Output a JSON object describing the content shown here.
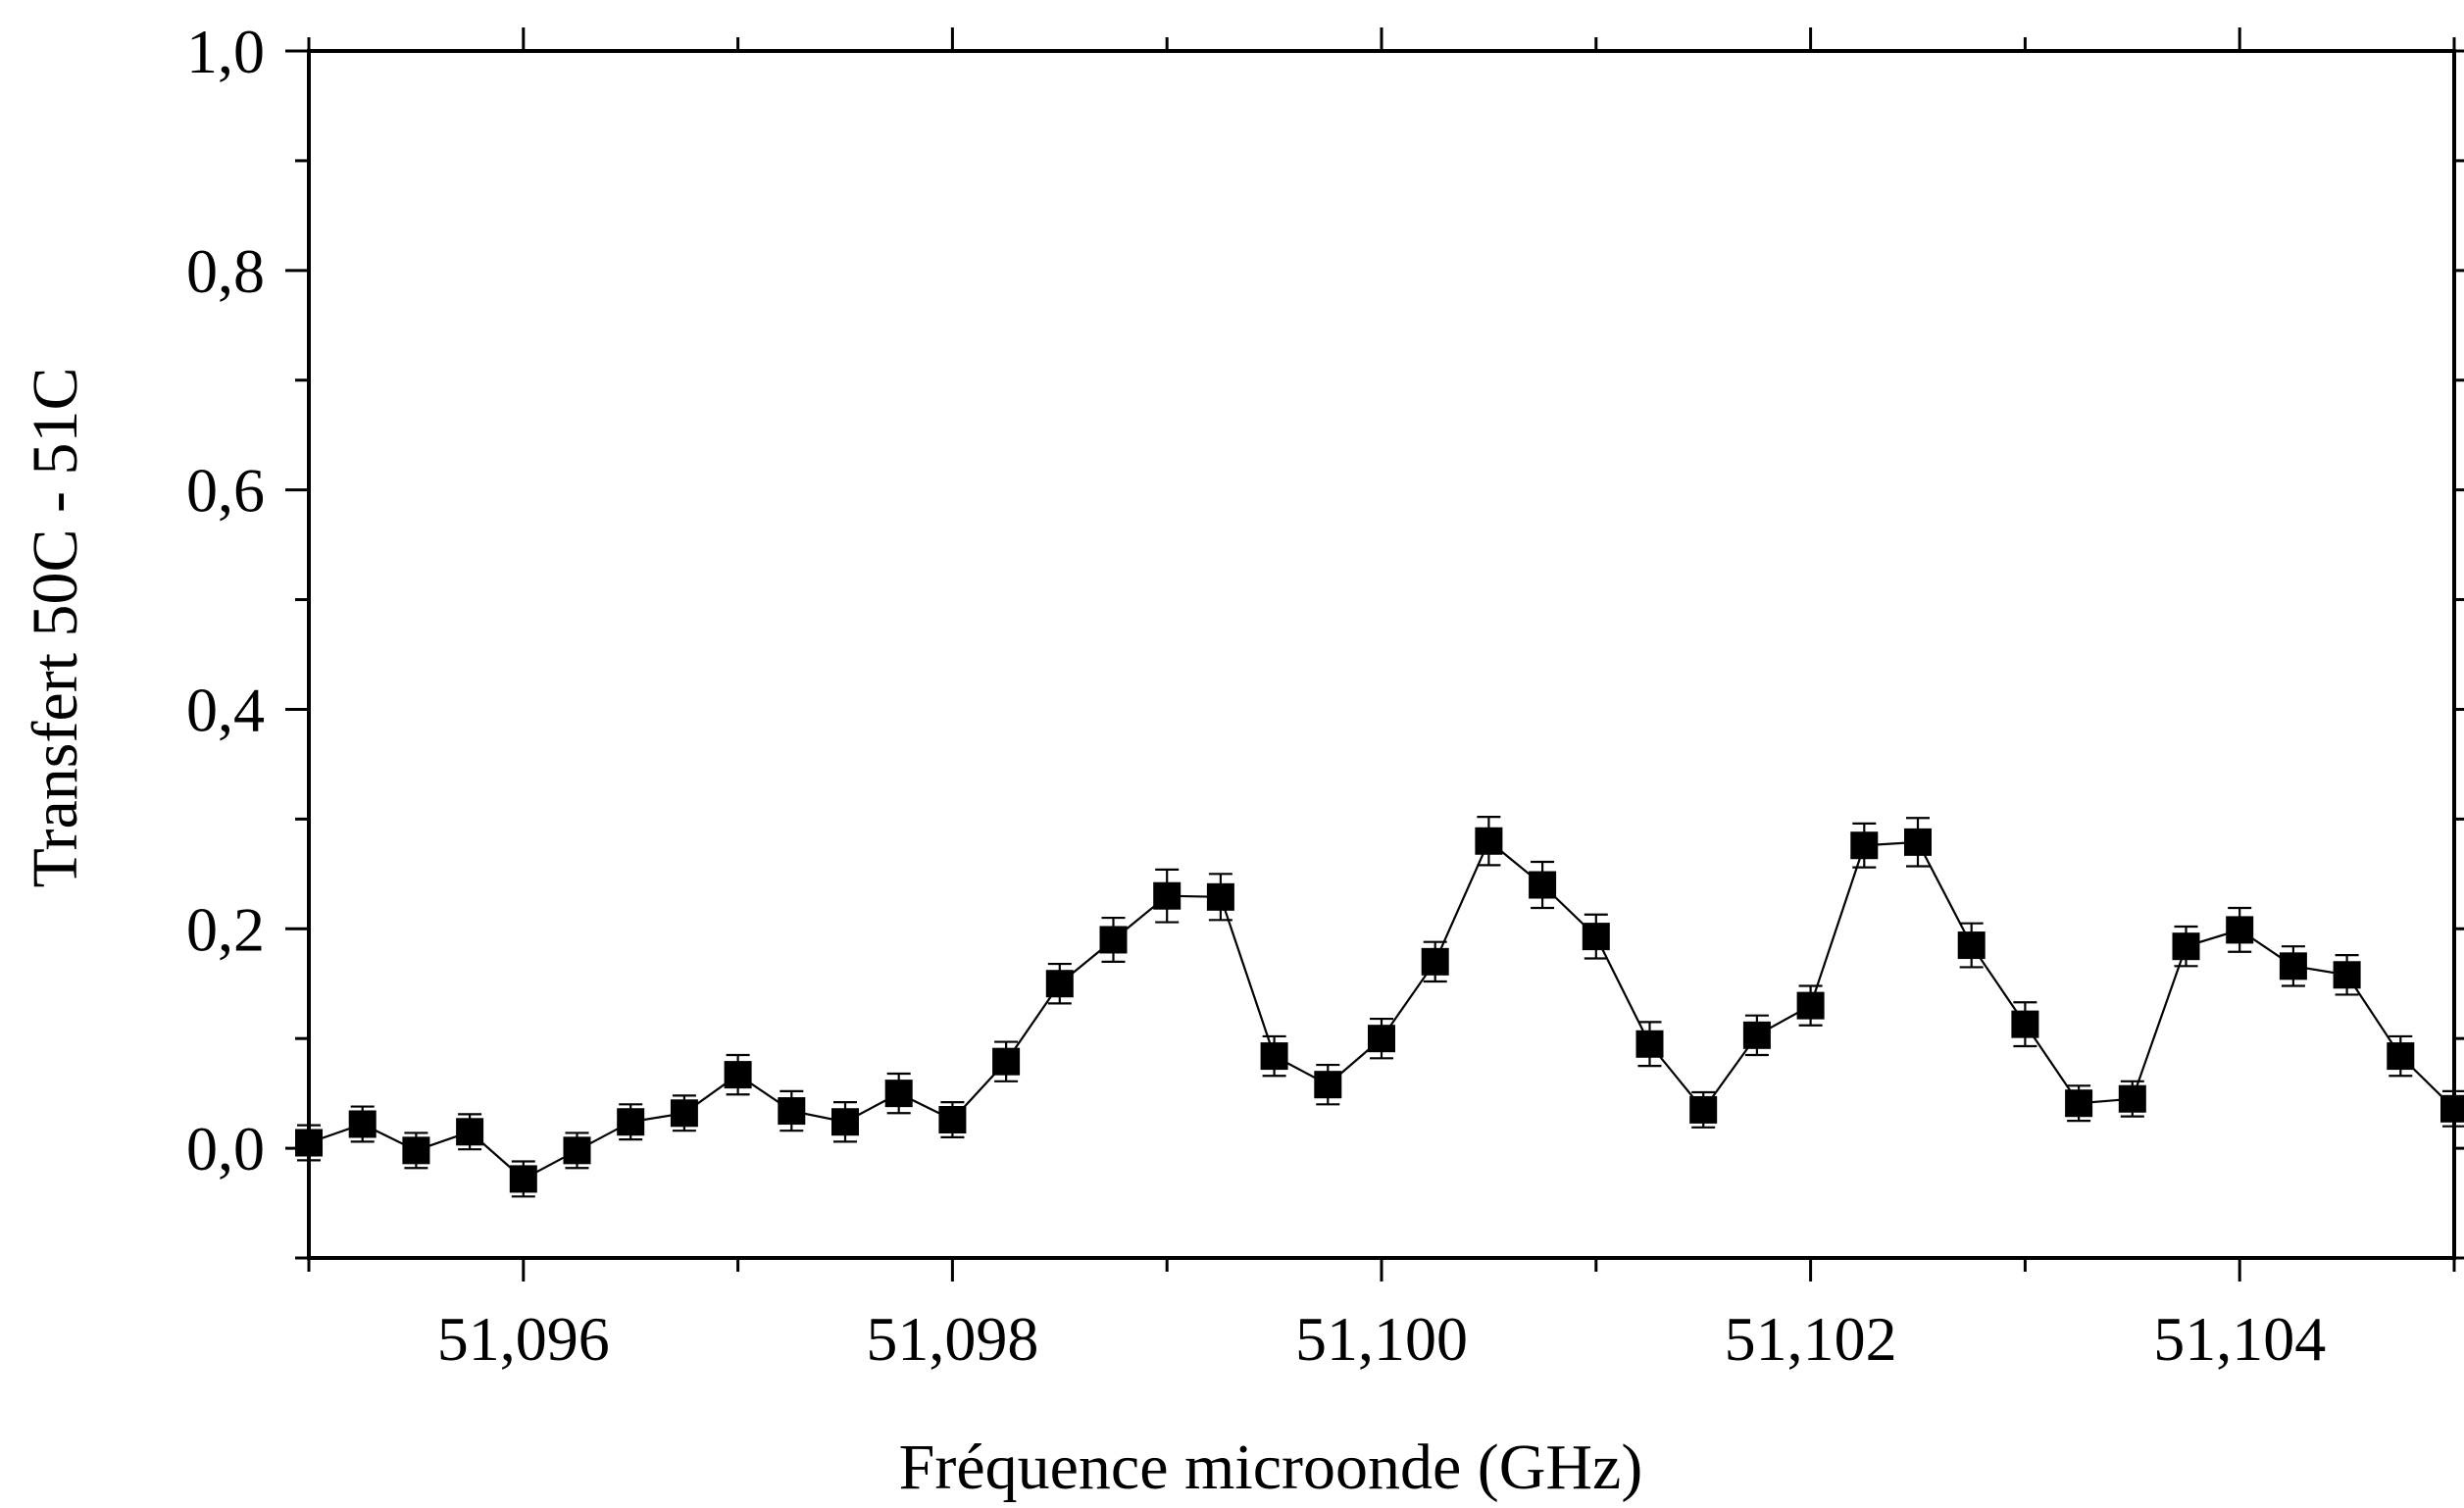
{
  "chart_data": {
    "type": "scatter",
    "title": "",
    "xlabel": "Fréquence microonde (GHz)",
    "ylabel": "Transfert 50C - 51C",
    "xlim": [
      51.095,
      51.105
    ],
    "ylim": [
      -0.1,
      1.0
    ],
    "x_ticks": [
      51.096,
      51.098,
      51.1,
      51.102,
      51.104
    ],
    "x_tick_labels": [
      "51,096",
      "51,098",
      "51,100",
      "51,102",
      "51,104"
    ],
    "y_ticks": [
      0.0,
      0.2,
      0.4,
      0.6,
      0.8,
      1.0
    ],
    "y_tick_labels": [
      "0,0",
      "0,2",
      "0,4",
      "0,6",
      "0,8",
      "1,0"
    ],
    "grid": false,
    "legend": "none",
    "marker": "filled-square",
    "connected": true,
    "color": "#000000",
    "series": [
      {
        "x": [
          51.095,
          51.09525,
          51.0955,
          51.09575,
          51.096,
          51.09625,
          51.0965,
          51.09675,
          51.097,
          51.09725,
          51.0975,
          51.09775,
          51.098,
          51.09825,
          51.0985,
          51.09875,
          51.099,
          51.09925,
          51.0995,
          51.09975,
          51.1,
          51.10025,
          51.1005,
          51.10075,
          51.101,
          51.10125,
          51.1015,
          51.10175,
          51.102,
          51.10225,
          51.1025,
          51.10275,
          51.103,
          51.10325,
          51.1035,
          51.10375,
          51.104,
          51.10425,
          51.1045,
          51.10475,
          51.105
        ],
        "y": [
          0.005,
          0.022,
          -0.002,
          0.015,
          -0.028,
          -0.002,
          0.024,
          0.032,
          0.067,
          0.034,
          0.024,
          0.05,
          0.026,
          0.079,
          0.15,
          0.19,
          0.23,
          0.229,
          0.084,
          0.058,
          0.1,
          0.17,
          0.28,
          0.24,
          0.193,
          0.095,
          0.035,
          0.103,
          0.13,
          0.276,
          0.279,
          0.185,
          0.113,
          0.041,
          0.045,
          0.184,
          0.199,
          0.166,
          0.158,
          0.084,
          0.036
        ],
        "errors": [
          0.016,
          0.016,
          0.016,
          0.016,
          0.016,
          0.016,
          0.016,
          0.016,
          0.018,
          0.018,
          0.018,
          0.018,
          0.016,
          0.018,
          0.018,
          0.02,
          0.024,
          0.021,
          0.018,
          0.018,
          0.018,
          0.018,
          0.022,
          0.021,
          0.02,
          0.02,
          0.016,
          0.018,
          0.018,
          0.02,
          0.022,
          0.02,
          0.02,
          0.016,
          0.016,
          0.018,
          0.02,
          0.018,
          0.018,
          0.018,
          0.016
        ]
      }
    ]
  }
}
